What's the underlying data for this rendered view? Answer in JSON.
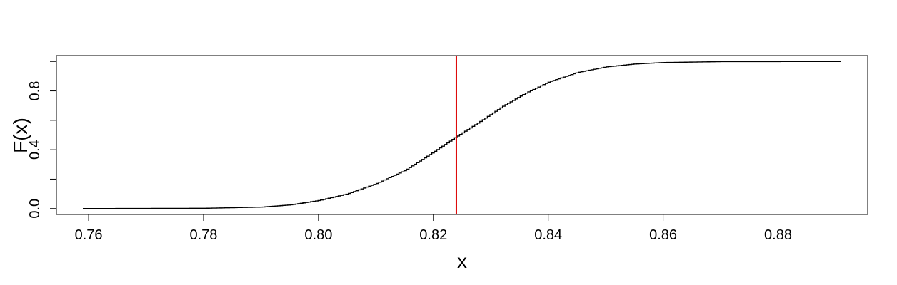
{
  "chart_data": {
    "type": "line",
    "title": "",
    "xlabel": "x",
    "ylabel": "F(x)",
    "xlim": [
      0.7544,
      0.8956
    ],
    "ylim": [
      -0.04,
      1.04
    ],
    "x_ticks": [
      0.76,
      0.78,
      0.8,
      0.82,
      0.84,
      0.86,
      0.88
    ],
    "x_tick_labels": [
      "0.76",
      "0.78",
      "0.80",
      "0.82",
      "0.84",
      "0.86",
      "0.88"
    ],
    "y_ticks": [
      0.0,
      0.2,
      0.4,
      0.6,
      0.8,
      1.0
    ],
    "y_tick_labels": [
      "0.0",
      "",
      "0.4",
      "",
      "0.8",
      ""
    ],
    "grid": false,
    "series": [
      {
        "style": "step",
        "color": "#000000",
        "x": [
          0.759,
          0.78,
          0.79,
          0.795,
          0.8,
          0.805,
          0.81,
          0.815,
          0.82,
          0.824,
          0.828,
          0.832,
          0.836,
          0.84,
          0.845,
          0.85,
          0.855,
          0.86,
          0.87,
          0.891
        ],
        "y": [
          0.0,
          0.002,
          0.01,
          0.025,
          0.055,
          0.1,
          0.17,
          0.26,
          0.385,
          0.49,
          0.59,
          0.695,
          0.785,
          0.86,
          0.925,
          0.963,
          0.983,
          0.993,
          0.999,
          1.0
        ]
      }
    ],
    "vline": {
      "x": 0.824,
      "color": "#dd0000"
    }
  }
}
